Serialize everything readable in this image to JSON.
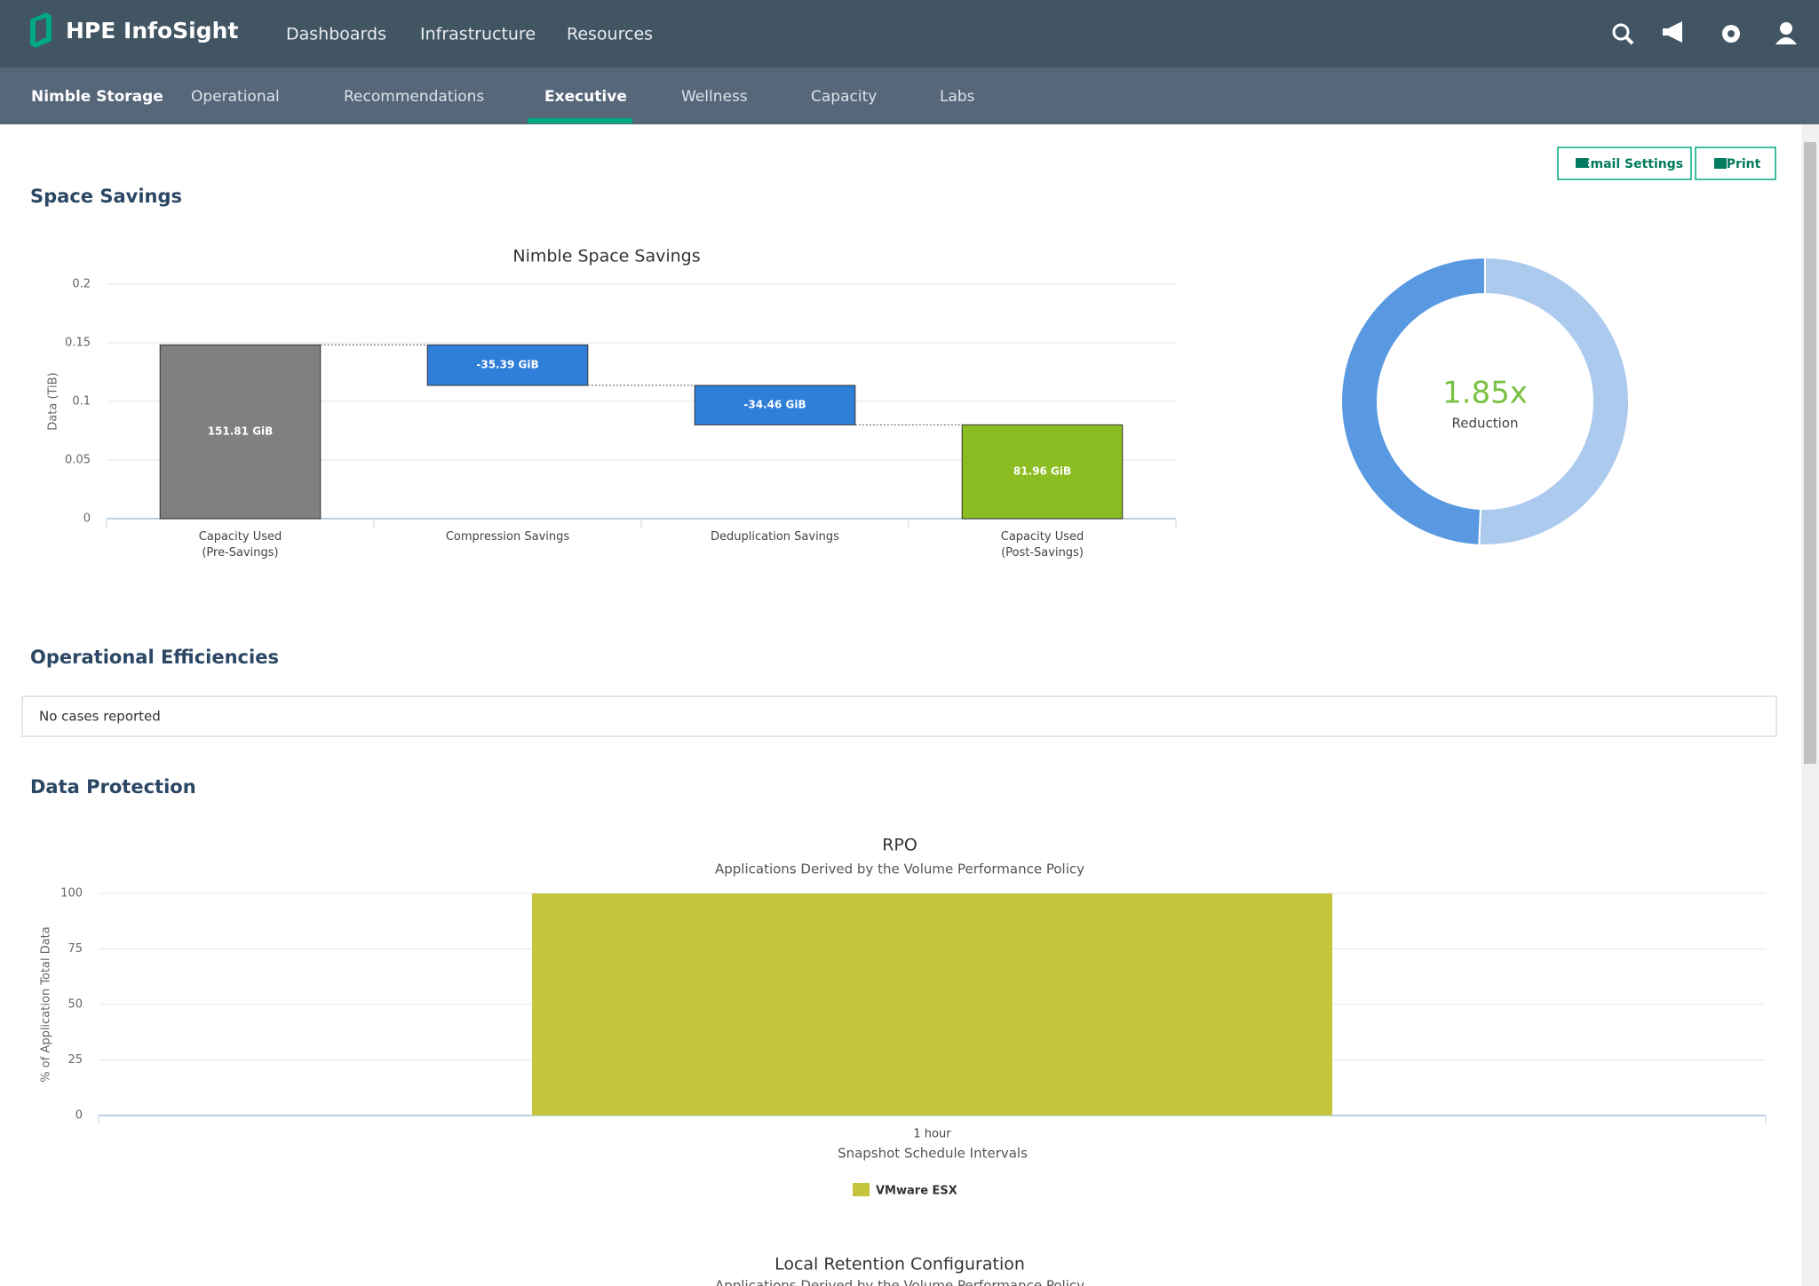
{
  "app": {
    "brand": "HPE InfoSight",
    "nav": [
      "Dashboards",
      "Infrastructure",
      "Resources"
    ]
  },
  "tabs": [
    "Nimble Storage",
    "Operational",
    "Recommendations",
    "Executive",
    "Wellness",
    "Capacity",
    "Labs"
  ],
  "active_tab": 3,
  "buttons": [
    "Email Settings",
    "Print"
  ],
  "sections": [
    "Space Savings",
    "Operational Efficiencies",
    "Data Protection"
  ],
  "operational_message": "No cases reported",
  "chart_data": [
    {
      "type": "waterfall",
      "title": "Nimble Space Savings",
      "y_label": "Data (TiB)",
      "categories": [
        "Capacity Used (Pre-Savings)",
        "Compression Savings",
        "Deduplication Savings",
        "Capacity Used (Post-Savings)"
      ],
      "values": [
        0.14825,
        -0.03456,
        -0.03365,
        0.08004
      ],
      "value_labels": [
        "151.81 GiB",
        "-35.39 GiB",
        "-34.46 GiB",
        "81.96 GiB"
      ],
      "colors": [
        "#808080",
        "#2f7ed8",
        "#2f7ed8",
        "#8bbc21"
      ],
      "is_sum": [
        false,
        false,
        false,
        true
      ],
      "ylim": [
        0,
        0.2
      ],
      "yticks": [
        0,
        0.05,
        0.1,
        0.15,
        0.2
      ],
      "grid": true
    },
    {
      "type": "donut",
      "values": [
        35.39,
        34.46
      ],
      "colors": [
        "#acc9ee",
        "#5899e2"
      ],
      "center_value": "1.85x",
      "center_label": "Reduction"
    },
    {
      "type": "bar",
      "title": "RPO",
      "subtitle": "Applications Derived by the Volume Performance Policy",
      "y_label": "% of Application Total Data",
      "x_label": "Snapshot Schedule Intervals",
      "categories": [
        "1 hour"
      ],
      "series": [
        {
          "name": "VMware ESX",
          "color": "#c4c43d",
          "values": [
            100
          ]
        }
      ],
      "ylim": [
        0,
        100
      ],
      "yticks": [
        0,
        25,
        50,
        75,
        100
      ],
      "grid": true
    },
    {
      "type": "title",
      "title": "Local Retention Configuration",
      "subtitle": "Applications Derived by the Volume Performance Policy"
    }
  ]
}
